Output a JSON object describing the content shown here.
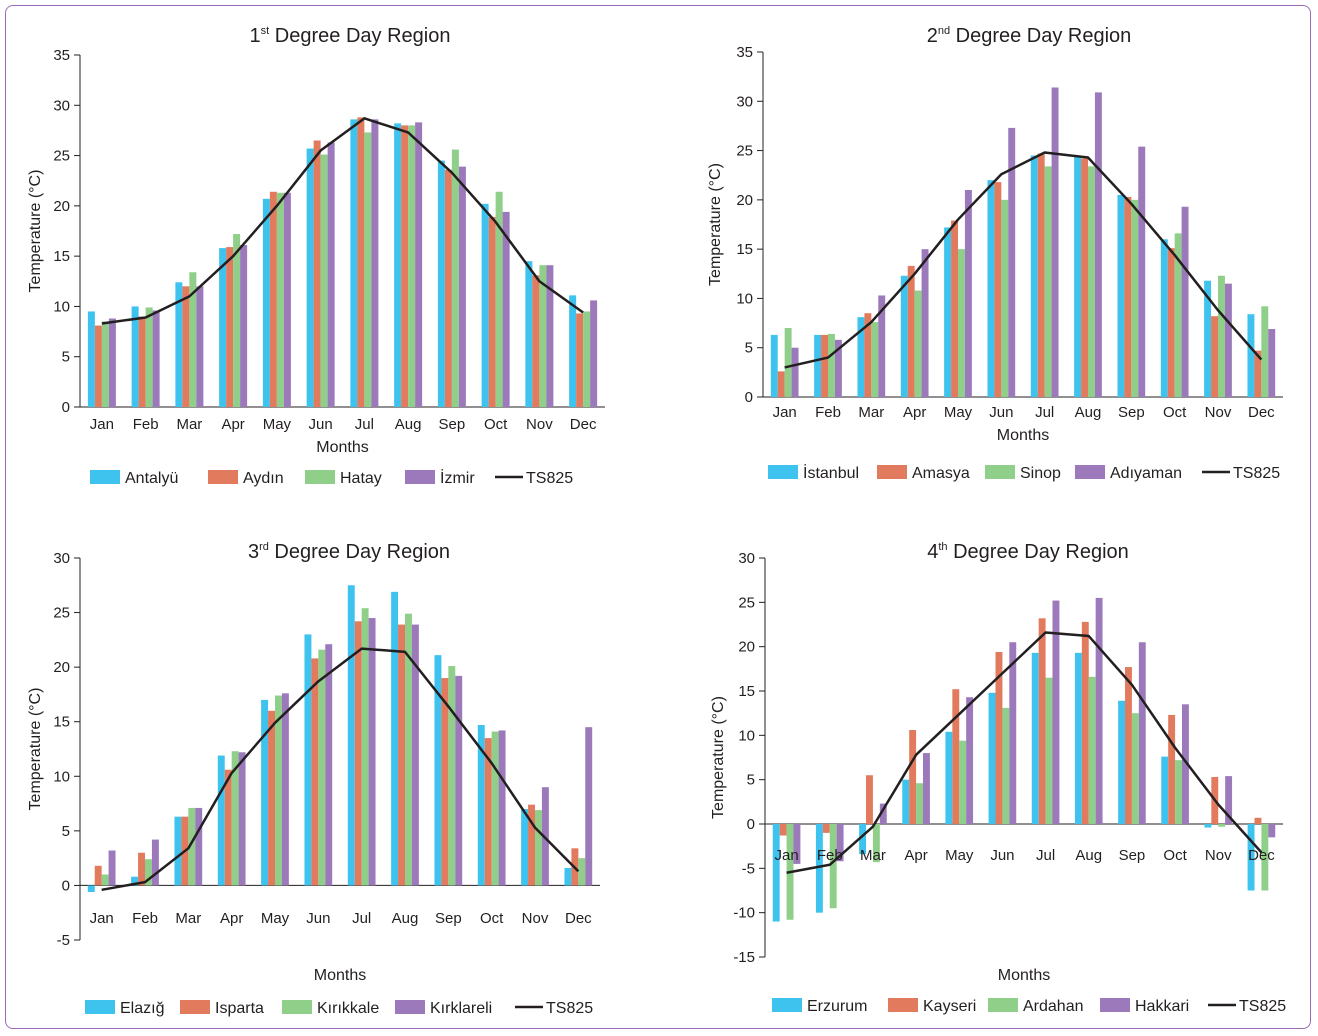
{
  "colors": {
    "blue": "#3ec3ef",
    "orange": "#e27a5e",
    "green": "#8fcf8a",
    "purple": "#9b79bb",
    "line": "#231f20",
    "frame": "#9b6bb5"
  },
  "chart_data": [
    {
      "type": "bar",
      "title": "1",
      "title_sup": "st",
      "title_rest": " Degree Day Region",
      "xlabel": "Months",
      "ylabel": "Temperature (°C)",
      "ylim": [
        0,
        35
      ],
      "yticks": [
        0,
        5,
        10,
        15,
        20,
        25,
        30,
        35
      ],
      "categories": [
        "Jan",
        "Feb",
        "Mar",
        "Apr",
        "May",
        "Jun",
        "Jul",
        "Aug",
        "Sep",
        "Oct",
        "Nov",
        "Dec"
      ],
      "series": [
        {
          "name": "Antalyü",
          "color": "blue",
          "values": [
            9.5,
            10.0,
            12.4,
            15.8,
            20.7,
            25.7,
            28.6,
            28.2,
            24.5,
            20.2,
            14.5,
            11.1
          ]
        },
        {
          "name": "Aydın",
          "color": "orange",
          "values": [
            8.1,
            9.0,
            12.0,
            15.9,
            21.4,
            26.5,
            28.8,
            28.0,
            23.6,
            18.9,
            13.1,
            9.3
          ]
        },
        {
          "name": "Hatay",
          "color": "green",
          "values": [
            8.5,
            9.9,
            13.4,
            17.2,
            21.3,
            25.1,
            27.3,
            28.0,
            25.6,
            21.4,
            14.1,
            9.5
          ]
        },
        {
          "name": "İzmir",
          "color": "purple",
          "values": [
            8.8,
            9.6,
            12.0,
            16.1,
            21.3,
            26.3,
            28.6,
            28.3,
            23.9,
            19.4,
            14.1,
            10.6
          ]
        }
      ],
      "line": {
        "name": "TS825",
        "values": [
          8.3,
          8.9,
          11.0,
          15.0,
          20.0,
          25.5,
          28.7,
          27.3,
          23.3,
          18.4,
          12.5,
          9.4
        ]
      },
      "legend_position": "bottom"
    },
    {
      "type": "bar",
      "title": "2",
      "title_sup": "nd",
      "title_rest": " Degree Day Region",
      "xlabel": "Months",
      "ylabel": "Temperature (°C)",
      "ylim": [
        0,
        35
      ],
      "yticks": [
        0,
        5,
        10,
        15,
        20,
        25,
        30,
        35
      ],
      "categories": [
        "Jan",
        "Feb",
        "Mar",
        "Apr",
        "May",
        "Jun",
        "Jul",
        "Aug",
        "Sep",
        "Oct",
        "Nov",
        "Dec"
      ],
      "series": [
        {
          "name": "İstanbul",
          "color": "blue",
          "values": [
            6.3,
            6.3,
            8.1,
            12.3,
            17.2,
            22.0,
            24.5,
            24.4,
            20.5,
            16.0,
            11.8,
            8.4
          ]
        },
        {
          "name": "Amasya",
          "color": "orange",
          "values": [
            2.6,
            6.3,
            8.5,
            13.3,
            17.9,
            21.8,
            24.7,
            24.2,
            20.3,
            15.1,
            8.2,
            4.7
          ]
        },
        {
          "name": "Sinop",
          "color": "green",
          "values": [
            7.0,
            6.4,
            7.6,
            10.8,
            15.0,
            20.0,
            23.4,
            23.4,
            20.0,
            16.6,
            12.3,
            9.2
          ]
        },
        {
          "name": "Adıyaman",
          "color": "purple",
          "values": [
            5.0,
            5.8,
            10.3,
            15.0,
            21.0,
            27.3,
            31.4,
            30.9,
            25.4,
            19.3,
            11.5,
            6.9
          ]
        }
      ],
      "line": {
        "name": "TS825",
        "values": [
          3.0,
          4.0,
          7.6,
          12.5,
          18.0,
          22.6,
          24.8,
          24.3,
          19.6,
          14.4,
          8.8,
          3.8
        ]
      },
      "legend_position": "bottom"
    },
    {
      "type": "bar",
      "title": "3",
      "title_sup": "rd",
      "title_rest": " Degree Day Region",
      "xlabel": "Months",
      "ylabel": "Temperature (°C)",
      "ylim": [
        -5,
        30
      ],
      "yticks": [
        -5,
        0,
        5,
        10,
        15,
        20,
        25,
        30
      ],
      "categories": [
        "Jan",
        "Feb",
        "Mar",
        "Apr",
        "May",
        "Jun",
        "Jul",
        "Aug",
        "Sep",
        "Oct",
        "Nov",
        "Dec"
      ],
      "series": [
        {
          "name": "Elazığ",
          "color": "blue",
          "values": [
            -0.6,
            0.8,
            6.3,
            11.9,
            17.0,
            23.0,
            27.5,
            26.9,
            21.1,
            14.7,
            7.0,
            1.6
          ]
        },
        {
          "name": "Isparta",
          "color": "orange",
          "values": [
            1.8,
            3.0,
            6.3,
            10.6,
            16.0,
            20.8,
            24.2,
            23.9,
            19.0,
            13.5,
            7.4,
            3.4
          ]
        },
        {
          "name": "Kırıkkale",
          "color": "green",
          "values": [
            1.0,
            2.4,
            7.1,
            12.3,
            17.4,
            21.6,
            25.4,
            24.9,
            20.1,
            14.1,
            6.9,
            2.5
          ]
        },
        {
          "name": "Kırklareli",
          "color": "purple",
          "values": [
            3.2,
            4.2,
            7.1,
            12.2,
            17.6,
            22.1,
            24.5,
            23.9,
            19.2,
            14.2,
            9.0,
            14.5
          ]
        }
      ],
      "line": {
        "name": "TS825",
        "values": [
          -0.4,
          0.3,
          3.4,
          10.3,
          14.9,
          18.7,
          21.7,
          21.4,
          16.4,
          11.2,
          5.3,
          1.3
        ]
      },
      "legend_position": "bottom"
    },
    {
      "type": "bar",
      "title": "4",
      "title_sup": "th",
      "title_rest": " Degree Day Region",
      "xlabel": "Months",
      "ylabel": "Temperature (°C)",
      "ylim": [
        -15,
        30
      ],
      "yticks": [
        -15,
        -10,
        -5,
        0,
        5,
        10,
        15,
        20,
        25,
        30
      ],
      "categories": [
        "Jan",
        "Feb",
        "Mar",
        "Apr",
        "May",
        "Jun",
        "Jul",
        "Aug",
        "Sep",
        "Oct",
        "Nov",
        "Dec"
      ],
      "series": [
        {
          "name": "Erzurum",
          "color": "blue",
          "values": [
            -11.0,
            -10.0,
            -3.4,
            5.0,
            10.4,
            14.8,
            19.3,
            19.3,
            13.9,
            7.6,
            -0.4,
            -7.5
          ]
        },
        {
          "name": "Kayseri",
          "color": "orange",
          "values": [
            -1.3,
            -1.0,
            5.5,
            10.6,
            15.2,
            19.4,
            23.2,
            22.8,
            17.7,
            12.3,
            5.3,
            0.7
          ]
        },
        {
          "name": "Ardahan",
          "color": "green",
          "values": [
            -10.8,
            -9.5,
            -4.3,
            4.6,
            9.4,
            13.1,
            16.5,
            16.6,
            12.5,
            7.2,
            -0.3,
            -7.5
          ]
        },
        {
          "name": "Hakkari",
          "color": "purple",
          "values": [
            -4.5,
            -4.2,
            2.3,
            8.0,
            14.3,
            20.5,
            25.2,
            25.5,
            20.5,
            13.5,
            5.4,
            -1.5
          ]
        }
      ],
      "line": {
        "name": "TS825",
        "values": [
          -5.5,
          -4.6,
          -0.3,
          7.8,
          12.4,
          17.0,
          21.6,
          21.2,
          15.7,
          8.6,
          2.2,
          -3.2
        ]
      },
      "legend_position": "bottom"
    }
  ]
}
